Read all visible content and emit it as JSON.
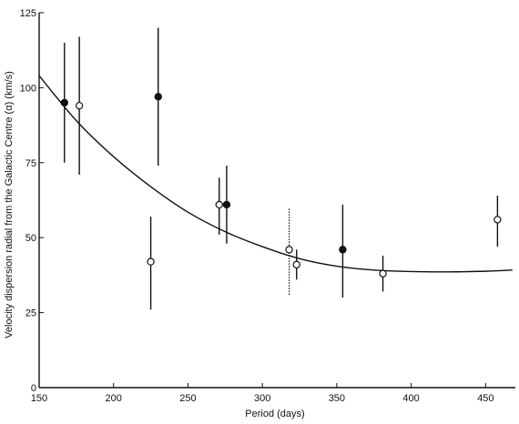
{
  "chart_data": {
    "type": "scatter",
    "title": "",
    "xlabel": "Period (days)",
    "ylabel": "Velocity dispersion radial from the Galactic Centre (α) (km/s)",
    "xlim": [
      150,
      470
    ],
    "ylim": [
      0,
      125
    ],
    "xticks": [
      150,
      200,
      250,
      300,
      350,
      400,
      450
    ],
    "yticks": [
      0,
      25,
      50,
      75,
      100,
      125
    ],
    "grid": false,
    "legend": "none",
    "colors": {
      "ink": "#111111",
      "background": "#ffffff"
    },
    "series": [
      {
        "marker": "filled-circle",
        "points": [
          {
            "x": 167,
            "y": 95,
            "err_low": 75,
            "err_high": 115
          },
          {
            "x": 230,
            "y": 97,
            "err_low": 74,
            "err_high": 120
          },
          {
            "x": 276,
            "y": 61,
            "err_low": 48,
            "err_high": 74
          },
          {
            "x": 354,
            "y": 46,
            "err_low": 30,
            "err_high": 61
          }
        ]
      },
      {
        "marker": "open-circle",
        "points": [
          {
            "x": 177,
            "y": 94,
            "err_low": 71,
            "err_high": 117
          },
          {
            "x": 225,
            "y": 42,
            "err_low": 26,
            "err_high": 57
          },
          {
            "x": 271,
            "y": 61,
            "err_low": 51,
            "err_high": 70
          },
          {
            "x": 318,
            "y": 46,
            "err_low": 31,
            "err_high": 60,
            "err_style": "dotted"
          },
          {
            "x": 323,
            "y": 41,
            "err_low": 36,
            "err_high": 46
          },
          {
            "x": 381,
            "y": 38,
            "err_low": 32,
            "err_high": 44
          },
          {
            "x": 458,
            "y": 56,
            "err_low": 47,
            "err_high": 64
          }
        ]
      }
    ],
    "curve": {
      "style": "solid",
      "points": [
        [
          150,
          104
        ],
        [
          175,
          89
        ],
        [
          200,
          77
        ],
        [
          225,
          67
        ],
        [
          250,
          58.5
        ],
        [
          275,
          52
        ],
        [
          300,
          47
        ],
        [
          325,
          43
        ],
        [
          350,
          40.5
        ],
        [
          375,
          39.2
        ],
        [
          400,
          38.7
        ],
        [
          425,
          38.6
        ],
        [
          450,
          38.8
        ],
        [
          468,
          39.2
        ]
      ]
    }
  }
}
